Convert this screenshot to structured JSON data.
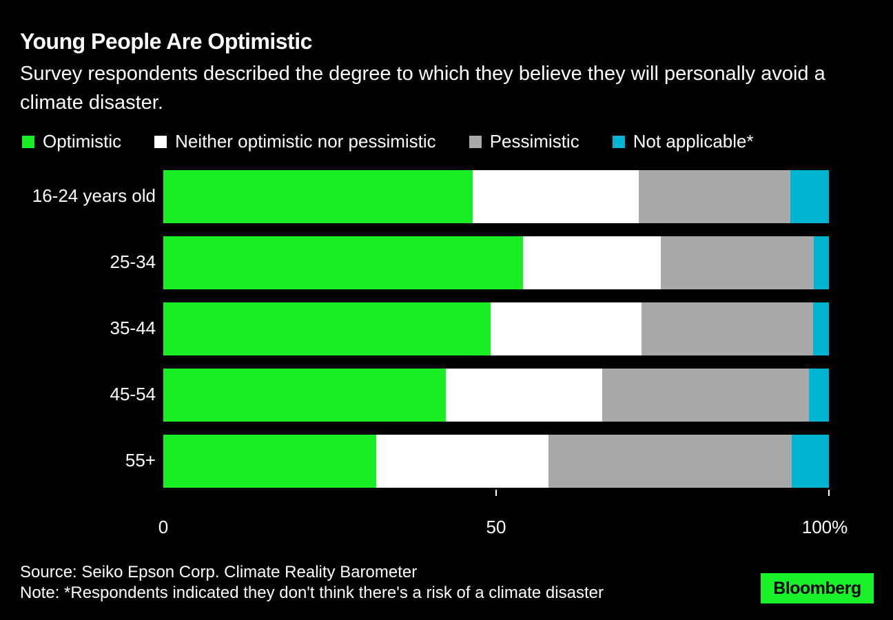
{
  "title": "Young People Are Optimistic",
  "subtitle": "Survey respondents described the degree to which they believe they will personally avoid a climate disaster.",
  "source": "Source: Seiko Epson Corp. Climate Reality Barometer",
  "note": "Note: *Respondents indicated they don't think there's a risk of a climate disaster",
  "logo": "Bloomberg",
  "chart_data": {
    "type": "bar",
    "orientation": "horizontal",
    "stacked": true,
    "categories": [
      "16-24 years old",
      "25-34",
      "35-44",
      "45-54",
      "55+"
    ],
    "series": [
      {
        "name": "Optimistic",
        "color": "#19ed23",
        "values": [
          46.5,
          54.0,
          49.2,
          42.4,
          32.0
        ]
      },
      {
        "name": "Neither optimistic nor pessimistic",
        "color": "#ffffff",
        "values": [
          24.9,
          20.7,
          22.6,
          23.5,
          25.9
        ]
      },
      {
        "name": "Pessimistic",
        "color": "#a9a9a9",
        "values": [
          22.8,
          23.0,
          25.8,
          31.1,
          36.5
        ]
      },
      {
        "name": "Not applicable*",
        "color": "#00b4d2",
        "values": [
          5.8,
          2.3,
          2.4,
          3.0,
          5.6
        ]
      }
    ],
    "xlim": [
      0,
      100
    ],
    "xticks": [
      0,
      50,
      100
    ],
    "xtick_labels": [
      "0",
      "50",
      "100%"
    ],
    "legend": "top",
    "grid": false
  }
}
